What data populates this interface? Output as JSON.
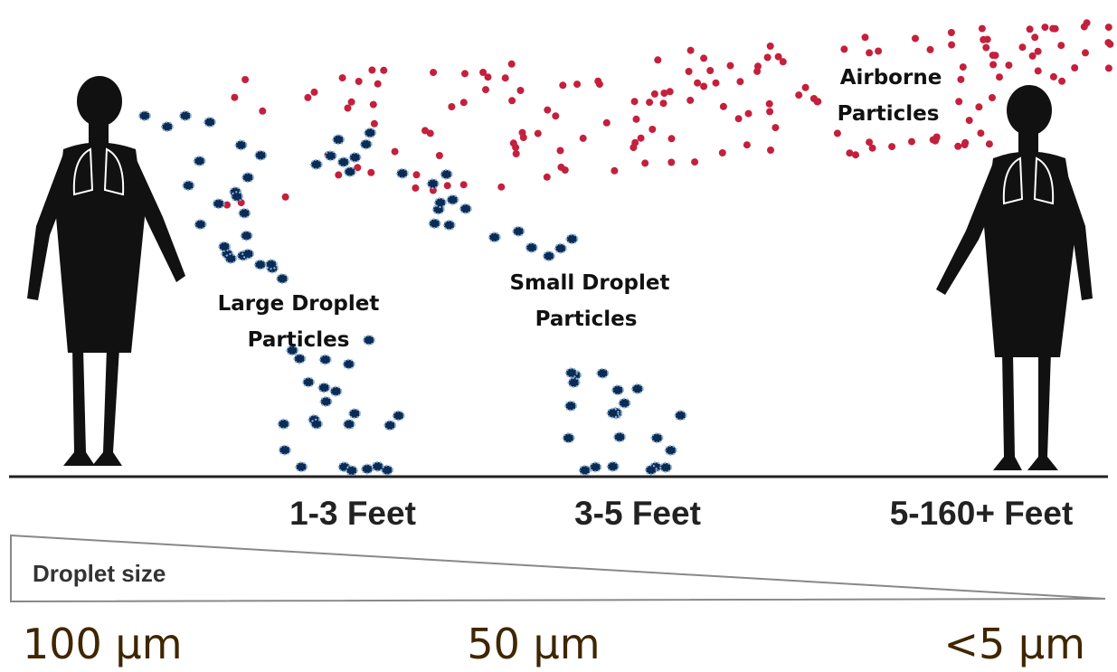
{
  "labels": [
    {
      "lines": [
        "Large Droplet",
        "Particles"
      ]
    },
    {
      "lines": [
        "Small Droplet",
        "Particles"
      ]
    },
    {
      "lines": [
        "Airborne",
        "Particles"
      ]
    }
  ],
  "distances": [
    "1-3 Feet",
    "3-5 Feet",
    "5-160+ Feet"
  ],
  "scale": {
    "title": "Droplet size",
    "sizes": [
      "100 µm",
      "50 µm",
      "<5 µm"
    ]
  }
}
